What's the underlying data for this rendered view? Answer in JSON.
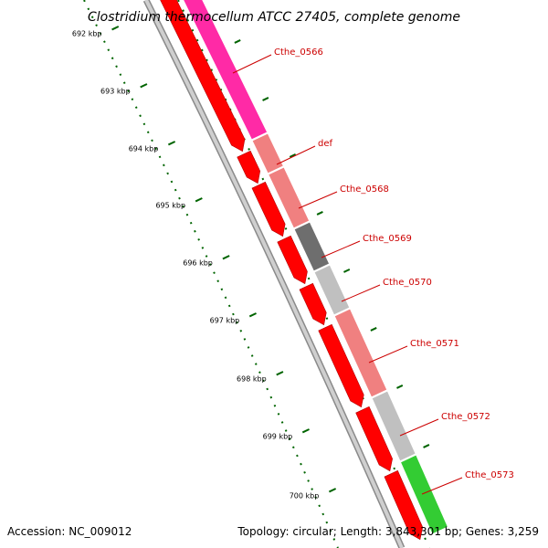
{
  "title": "Clostridium thermocellum ATCC 27405, complete genome",
  "footer": {
    "accession": "Accession: NC_009012",
    "stats": "Topology: circular; Length: 3,843,301 bp; Genes: 3,259"
  },
  "colors": {
    "background": "#ffffff",
    "backbone": "#a0a0a0",
    "forward_cds": "#ff0000",
    "tick": "#006400",
    "gene_label": "#cc0000"
  },
  "ticks": [
    {
      "label": "692 kbp"
    },
    {
      "label": "693 kbp"
    },
    {
      "label": "694 kbp"
    },
    {
      "label": "695 kbp"
    },
    {
      "label": "696 kbp"
    },
    {
      "label": "697 kbp"
    },
    {
      "label": "698 kbp"
    },
    {
      "label": "699 kbp"
    },
    {
      "label": "700 kbp"
    }
  ],
  "genes": [
    {
      "name": "Cthe_0566",
      "color": "#ff2aa6"
    },
    {
      "name": "def",
      "color": "#f08080"
    },
    {
      "name": "Cthe_0568",
      "color": "#f08080"
    },
    {
      "name": "Cthe_0569",
      "color": "#6e6e6e"
    },
    {
      "name": "Cthe_0570",
      "color": "#c0c0c0"
    },
    {
      "name": "Cthe_0571",
      "color": "#f08080"
    },
    {
      "name": "Cthe_0572",
      "color": "#c0c0c0"
    },
    {
      "name": "Cthe_0573",
      "color": "#33cc33"
    }
  ]
}
